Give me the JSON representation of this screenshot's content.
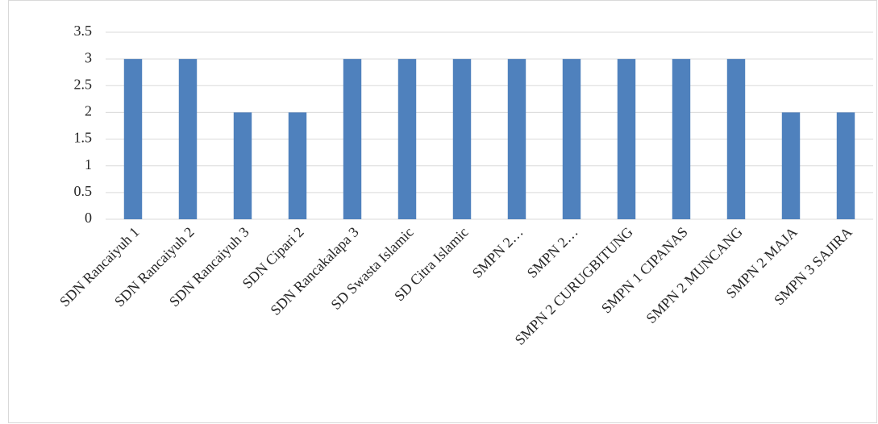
{
  "chart_data": {
    "type": "bar",
    "categories": [
      "SDN Rancaiyuh 1",
      "SDN Rancaiyuh 2",
      "SDN Rancaiyuh 3",
      "SDN Cipari 2",
      "SDN Rancakalapa 3",
      "SD Swasta Islamic",
      "SD Citra Islamic",
      "SMPN 2…",
      "SMPN 2…",
      "SMPN 2 CURUGBITUNG",
      "SMPN 1 CIPANAS",
      "SMPN 2 MUNCANG",
      "SMPN 2 MAJA",
      "SMPN 3 SAJIRA"
    ],
    "values": [
      3,
      3,
      2,
      2,
      3,
      3,
      3,
      3,
      3,
      3,
      3,
      3,
      2,
      2
    ],
    "color": "#4f81bd",
    "ylim": [
      0,
      3.5
    ],
    "yticks": [
      0,
      0.5,
      1,
      1.5,
      2,
      2.5,
      3,
      3.5
    ],
    "grid": true
  }
}
